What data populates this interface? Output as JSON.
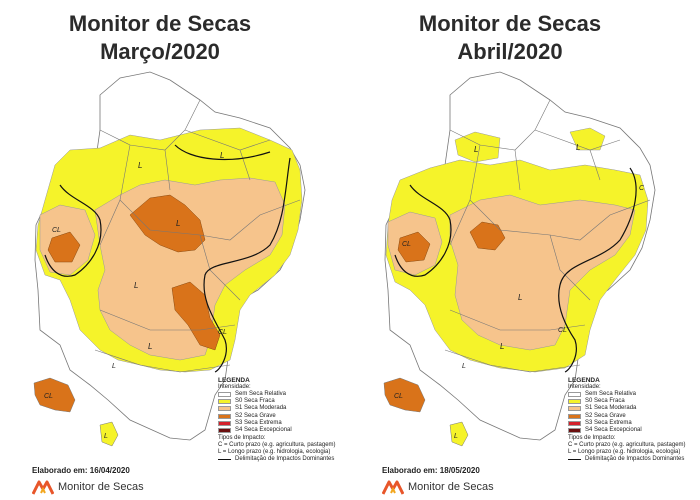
{
  "maps": [
    {
      "title_line1": "Monitor de Secas",
      "title_line2": "Março/2020",
      "elaborated": "Elaborado em: 16/04/2020",
      "impact_labels": [
        "L",
        "L",
        "CL",
        "L",
        "L",
        "CL",
        "L",
        "CL",
        "L",
        "L"
      ]
    },
    {
      "title_line1": "Monitor de Secas",
      "title_line2": "Abril/2020",
      "elaborated": "Elaborado em: 18/05/2020",
      "impact_labels": [
        "L",
        "L",
        "CL",
        "C",
        "L",
        "L",
        "CL",
        "CL",
        "L",
        "L"
      ]
    }
  ],
  "legend": {
    "title": "LEGENDA",
    "intensity_label": "Intensidade:",
    "items": [
      {
        "label": "Sem Seca Relativa",
        "color": "#ffffff"
      },
      {
        "label": "S0 Seca Fraca",
        "color": "#f5f32a"
      },
      {
        "label": "S1 Seca Moderada",
        "color": "#f6c48c"
      },
      {
        "label": "S2 Seca Grave",
        "color": "#d9731a"
      },
      {
        "label": "S3 Seca Extrema",
        "color": "#d4202a"
      },
      {
        "label": "S4 Seca Excepcional",
        "color": "#6b0f0f"
      }
    ],
    "impact_title": "Tipos de Impacto:",
    "impact_short": "C = Curto prazo (e.g. agricultura, pastagem)",
    "impact_long": "L = Longo prazo (e.g. hidrologia, ecologia)",
    "boundary": "Delimitação de Impactos Dominantes"
  },
  "brand": {
    "name": "Monitor de Secas",
    "logo_colors": [
      "#e8562a",
      "#f2a61d"
    ]
  }
}
